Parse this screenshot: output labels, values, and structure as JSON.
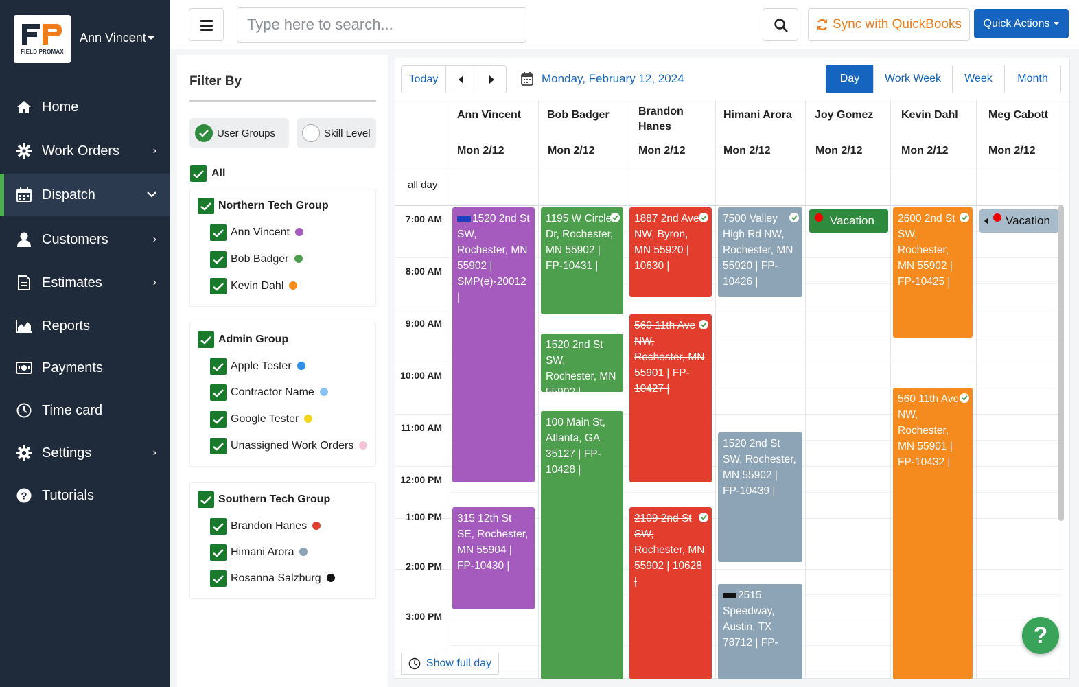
{
  "sidebar": {
    "logo_text": "FIELD PROMAX",
    "user_name": "Ann Vincent",
    "items": [
      {
        "label": "Home",
        "icon": "home-icon",
        "arrow": ""
      },
      {
        "label": "Work Orders",
        "icon": "gear-icon",
        "arrow": "›"
      },
      {
        "label": "Dispatch",
        "icon": "calendar-icon",
        "arrow": "⌄"
      },
      {
        "label": "Customers",
        "icon": "user-icon",
        "arrow": "›"
      },
      {
        "label": "Estimates",
        "icon": "document-icon",
        "arrow": "›"
      },
      {
        "label": "Reports",
        "icon": "chart-icon",
        "arrow": ""
      },
      {
        "label": "Payments",
        "icon": "money-icon",
        "arrow": ""
      },
      {
        "label": "Time card",
        "icon": "clock-icon",
        "arrow": ""
      },
      {
        "label": "Settings",
        "icon": "settings-icon",
        "arrow": "›"
      },
      {
        "label": "Tutorials",
        "icon": "question-icon",
        "arrow": ""
      }
    ],
    "active_index": 2
  },
  "topbar": {
    "search_placeholder": "Type here to search...",
    "sync_label": "Sync with QuickBooks",
    "quick_actions_label": "Quick Actions"
  },
  "filter": {
    "title": "Filter By",
    "toggle_user_groups": "User Groups",
    "toggle_skill_level": "Skill Level",
    "all_label": "All",
    "groups": [
      {
        "name": "Northern Tech Group",
        "members": [
          {
            "name": "Ann Vincent",
            "color": "#a45bbd"
          },
          {
            "name": "Bob Badger",
            "color": "#4e9f4d"
          },
          {
            "name": "Kevin Dahl",
            "color": "#f58a1e"
          }
        ]
      },
      {
        "name": "Admin Group",
        "members": [
          {
            "name": "Apple Tester",
            "color": "#2f8fe8"
          },
          {
            "name": "Contractor Name",
            "color": "#8cc3f5"
          },
          {
            "name": "Google Tester",
            "color": "#f2d41a"
          },
          {
            "name": "Unassigned Work Orders",
            "color": "#f5c3d7"
          }
        ]
      },
      {
        "name": "Southern Tech Group",
        "members": [
          {
            "name": "Brandon Hanes",
            "color": "#e33e2d"
          },
          {
            "name": "Himani Arora",
            "color": "#8da3b6"
          },
          {
            "name": "Rosanna Salzburg",
            "color": "#111111"
          }
        ]
      }
    ]
  },
  "calendar": {
    "today_label": "Today",
    "date_label": "Monday, February 12, 2024",
    "views": [
      "Day",
      "Work Week",
      "Week",
      "Month"
    ],
    "active_view": "Day",
    "all_day_label": "all day",
    "show_full_day_label": "Show full day",
    "technicians": [
      {
        "name": "Ann Vincent",
        "date": "Mon 2/12"
      },
      {
        "name": "Bob Badger",
        "date": "Mon 2/12"
      },
      {
        "name": "Brandon Hanes",
        "date": "Mon 2/12"
      },
      {
        "name": "Himani Arora",
        "date": "Mon 2/12"
      },
      {
        "name": "Joy Gomez",
        "date": "Mon 2/12"
      },
      {
        "name": "Kevin Dahl",
        "date": "Mon 2/12"
      },
      {
        "name": "Meg Cabott",
        "date": "Mon 2/12"
      }
    ],
    "times": [
      "7:00 AM",
      "8:00 AM",
      "9:00 AM",
      "10:00 AM",
      "11:00 AM",
      "12:00 PM",
      "1:00 PM",
      "2:00 PM",
      "3:00 PM"
    ],
    "vacations": [
      {
        "tech": "Joy Gomez",
        "label": "Vacation"
      },
      {
        "tech": "Meg Cabott",
        "label": "Vacation"
      }
    ],
    "events": {
      "ann1": "1520 2nd St SW, Rochester, MN 55902 | SMP(e)-20012 |",
      "ann2": "315 12th St SE, Rochester, MN 55904 | FP-10430 |",
      "bob1": "1195 W Circle Dr, Rochester, MN 55902 | FP-10431 |",
      "bob2": "1520 2nd St SW, Rochester, MN 55902 |",
      "bob3": "100 Main St, Atlanta, GA 35127 | FP-10428 |",
      "bra1": "1887 2nd Ave NW, Byron, MN 55920 | 10630 |",
      "bra2": "560 11th Ave NW, Rochester, MN 55901 | FP-10427 |",
      "bra3": "2109 2nd St SW, Rochester, MN 55902 | 10628 |",
      "him1": "7500 Valley High Rd NW, Rochester, MN 55920 | FP-10426 |",
      "him2": "1520 2nd St SW, Rochester, MN 55902 | FP-10439 |",
      "him3": "2515 Speedway, Austin, TX 78712 | FP-",
      "kev1": "2600 2nd St SW, Rochester, MN 55902 | FP-10425 |",
      "kev2": "560 11th Ave NW, Rochester, MN 55901 | FP-10432 |"
    }
  },
  "help_label": "?"
}
